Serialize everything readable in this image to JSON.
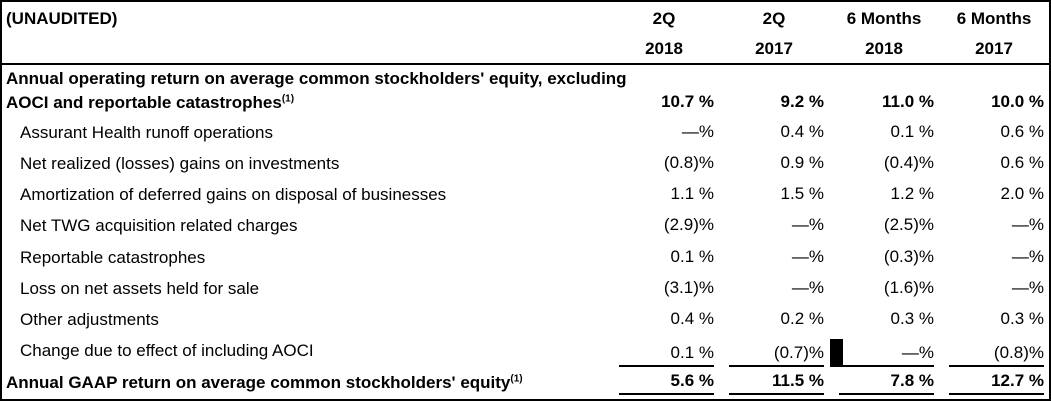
{
  "header": {
    "unaudited": "(UNAUDITED)",
    "columns": [
      {
        "period": "2Q",
        "year": "2018"
      },
      {
        "period": "2Q",
        "year": "2017"
      },
      {
        "period": "6 Months",
        "year": "2018"
      },
      {
        "period": "6 Months",
        "year": "2017"
      }
    ]
  },
  "rows": [
    {
      "label": "Annual operating return on average common stockholders' equity, excluding",
      "bold": true,
      "intro": true,
      "values": [
        "",
        "",
        "",
        ""
      ]
    },
    {
      "label": "AOCI and reportable catastrophes",
      "sup": "(1)",
      "bold": true,
      "values": [
        "10.7 %",
        "9.2 %",
        "11.0 %",
        "10.0 %"
      ]
    },
    {
      "label": "Assurant Health runoff operations",
      "indent": true,
      "values": [
        "—%",
        "0.4 %",
        "0.1 %",
        "0.6 %"
      ]
    },
    {
      "label": "Net realized (losses) gains on investments",
      "indent": true,
      "values": [
        "(0.8)%",
        "0.9 %",
        "(0.4)%",
        "0.6 %"
      ]
    },
    {
      "label": "Amortization of deferred gains on disposal of businesses",
      "indent": true,
      "values": [
        "1.1 %",
        "1.5 %",
        "1.2 %",
        "2.0 %"
      ]
    },
    {
      "label": "Net TWG acquisition related charges",
      "indent": true,
      "values": [
        "(2.9)%",
        "—%",
        "(2.5)%",
        "—%"
      ]
    },
    {
      "label": "Reportable catastrophes",
      "indent": true,
      "values": [
        "0.1 %",
        "—%",
        "(0.3)%",
        "—%"
      ]
    },
    {
      "label": "Loss on net assets held for sale",
      "indent": true,
      "values": [
        "(3.1)%",
        "—%",
        "(1.6)%",
        "—%"
      ]
    },
    {
      "label": "Other adjustments",
      "indent": true,
      "values": [
        "0.4 %",
        "0.2 %",
        "0.3 %",
        "0.3 %"
      ]
    },
    {
      "label": "Change due to effect of including AOCI",
      "indent": true,
      "rule_below": true,
      "cursor_after_col": 1,
      "values": [
        "0.1 %",
        "(0.7)%",
        "—%",
        "(0.8)%"
      ]
    },
    {
      "label": "Annual GAAP return on average common stockholders' equity",
      "sup": "(1)",
      "bold": true,
      "total": true,
      "rule_below": true,
      "values": [
        "5.6 %",
        "11.5 %",
        "7.8 %",
        "12.7 %"
      ]
    }
  ],
  "colors": {
    "text": "#000000",
    "background": "#ffffff",
    "border": "#000000",
    "cursor_block": "#000000"
  }
}
